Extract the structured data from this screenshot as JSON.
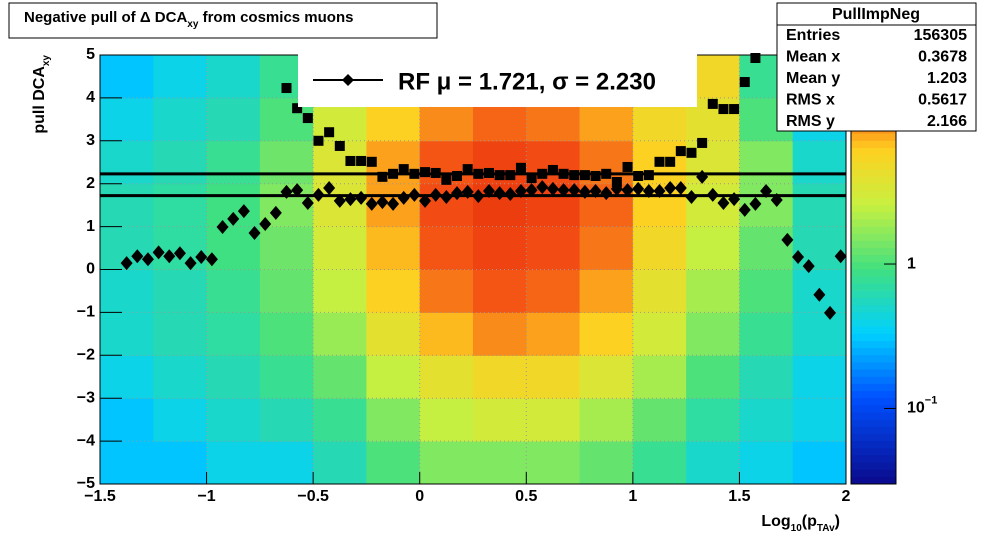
{
  "chart_data": {
    "type": "heatmap",
    "title": [
      "Negative pull of Δ DCA",
      "xy",
      " from cosmics muons"
    ],
    "xlabel": [
      "Log",
      "10",
      "(p",
      "TAv",
      ")"
    ],
    "ylabel": [
      "pull DCA",
      "xy"
    ],
    "xlim": [
      -1.5,
      2
    ],
    "ylim": [
      -5,
      5
    ],
    "xticks": [
      {
        "value": -1.5,
        "label": "−1.5"
      },
      {
        "value": -1,
        "label": "−1"
      },
      {
        "value": -0.5,
        "label": "−0.5"
      },
      0,
      0.5,
      1,
      1.5,
      2
    ],
    "yticks": [
      {
        "value": -5,
        "label": "−5"
      },
      {
        "value": -4,
        "label": "−4"
      },
      {
        "value": -3,
        "label": "−3"
      },
      {
        "value": -2,
        "label": "−2"
      },
      {
        "value": -1,
        "label": "−1"
      },
      0,
      1,
      2,
      3,
      4,
      5
    ],
    "grid": true,
    "log_z": true,
    "zlim": [
      0.03,
      28
    ],
    "zticks": [
      {
        "value": 0.1,
        "label": [
          "10",
          "−1"
        ]
      },
      1
    ],
    "heatmap": {
      "xbins": [
        -1.5,
        -1.25,
        -1,
        -0.75,
        -0.5,
        -0.25,
        0,
        0.25,
        0.5,
        0.75,
        1,
        1.25,
        1.5,
        1.75,
        2
      ],
      "ybins": [
        -5,
        -4,
        -3,
        -2,
        -1,
        0,
        1,
        2,
        3,
        4,
        5
      ],
      "z": [
        [
          0.3,
          0.3,
          0.4,
          0.4,
          0.6,
          1,
          1.5,
          1.5,
          1.5,
          1.2,
          0.8,
          0.5,
          0.4,
          0.3
        ],
        [
          0.3,
          0.4,
          0.5,
          0.6,
          0.8,
          1.5,
          2.5,
          3,
          3,
          2,
          1.2,
          0.7,
          0.5,
          0.4
        ],
        [
          0.4,
          0.5,
          0.6,
          0.8,
          1.2,
          2.5,
          4,
          5,
          5,
          3.5,
          2,
          1,
          0.6,
          0.4
        ],
        [
          0.5,
          0.6,
          0.7,
          1,
          1.8,
          4,
          7,
          9,
          8,
          6,
          3,
          1.5,
          0.8,
          0.5
        ],
        [
          0.5,
          0.6,
          0.8,
          1.2,
          2.5,
          6,
          10,
          12,
          11,
          8,
          4,
          2,
          1,
          0.5
        ],
        [
          0.6,
          0.7,
          0.9,
          1.3,
          3,
          7,
          12,
          14,
          13,
          10,
          5,
          2.5,
          1.2,
          0.6
        ],
        [
          0.6,
          0.7,
          0.9,
          1.5,
          3.5,
          8,
          13,
          15,
          14,
          11,
          6,
          3,
          1.5,
          0.6
        ],
        [
          0.5,
          0.6,
          0.8,
          1.3,
          3.5,
          8,
          12,
          14,
          13,
          10,
          6,
          3.5,
          1.5,
          0.5
        ],
        [
          0.4,
          0.5,
          0.6,
          1,
          3,
          6,
          9,
          11,
          10,
          8,
          5,
          4,
          1,
          0.4
        ],
        [
          0.3,
          0.4,
          0.5,
          0.8,
          4,
          5,
          7,
          8,
          8,
          6,
          4,
          5,
          0.8,
          0.3
        ]
      ]
    },
    "series": [
      {
        "marker": "diamond",
        "color": "#000000",
        "x": [
          -1.375,
          -1.325,
          -1.275,
          -1.225,
          -1.175,
          -1.125,
          -1.075,
          -1.025,
          -0.975,
          -0.925,
          -0.875,
          -0.825,
          -0.775,
          -0.725,
          -0.675,
          -0.625,
          -0.575,
          -0.525,
          -0.475,
          -0.425,
          -0.375,
          -0.325,
          -0.275,
          -0.225,
          -0.175,
          -0.125,
          -0.075,
          -0.025,
          0.025,
          0.075,
          0.125,
          0.175,
          0.225,
          0.275,
          0.325,
          0.375,
          0.425,
          0.475,
          0.525,
          0.575,
          0.625,
          0.675,
          0.725,
          0.775,
          0.825,
          0.875,
          0.925,
          0.975,
          1.025,
          1.075,
          1.125,
          1.175,
          1.225,
          1.275,
          1.325,
          1.375,
          1.425,
          1.475,
          1.525,
          1.575,
          1.625,
          1.675,
          1.725,
          1.775,
          1.825,
          1.875,
          1.925,
          1.975
        ],
        "values": [
          0.15,
          0.31,
          0.24,
          0.4,
          0.31,
          0.38,
          0.15,
          0.29,
          0.24,
          0.99,
          1.18,
          1.36,
          0.85,
          1.06,
          1.32,
          1.81,
          1.85,
          1.55,
          1.74,
          1.9,
          1.6,
          1.64,
          1.67,
          1.53,
          1.57,
          1.53,
          1.67,
          1.74,
          1.6,
          1.74,
          1.69,
          1.78,
          1.81,
          1.71,
          1.83,
          1.78,
          1.76,
          1.83,
          1.85,
          1.92,
          1.88,
          1.85,
          1.85,
          1.81,
          1.83,
          1.78,
          1.88,
          1.85,
          1.88,
          1.83,
          1.83,
          1.9,
          1.9,
          1.69,
          2.16,
          1.74,
          1.55,
          1.64,
          1.39,
          1.53,
          1.83,
          1.62,
          0.69,
          0.29,
          0.08,
          -0.59,
          -1.01,
          0.31
        ]
      },
      {
        "marker": "square",
        "color": "#000000",
        "x": [
          -0.625,
          -0.575,
          -0.525,
          -0.475,
          -0.425,
          -0.375,
          -0.325,
          -0.275,
          -0.225,
          -0.175,
          -0.125,
          -0.075,
          -0.025,
          0.025,
          0.075,
          0.125,
          0.175,
          0.225,
          0.275,
          0.325,
          0.375,
          0.425,
          0.475,
          0.525,
          0.575,
          0.625,
          0.675,
          0.725,
          0.775,
          0.825,
          0.875,
          0.925,
          0.975,
          1.025,
          1.075,
          1.125,
          1.175,
          1.225,
          1.275,
          1.325,
          1.375,
          1.425,
          1.475,
          1.525,
          1.575
        ],
        "values": [
          4.23,
          3.76,
          3.53,
          3.0,
          3.2,
          2.88,
          2.53,
          2.53,
          2.51,
          2.16,
          2.23,
          2.34,
          2.23,
          2.27,
          2.25,
          2.09,
          2.18,
          2.34,
          2.23,
          2.25,
          2.2,
          2.2,
          2.37,
          2.13,
          2.23,
          2.32,
          2.23,
          2.2,
          2.2,
          2.18,
          2.23,
          2.04,
          2.39,
          2.18,
          2.2,
          2.51,
          2.51,
          2.76,
          2.72,
          2.95,
          3.86,
          3.74,
          3.74,
          4.37,
          4.93
        ]
      }
    ],
    "lines": [
      {
        "y": 1.721,
        "color": "#000000"
      },
      {
        "y": 2.23,
        "color": "#000000"
      }
    ],
    "legend": {
      "label": "RF μ =  1.721, σ =   2.230"
    },
    "stats": {
      "title": "PullImpNeg",
      "rows": [
        [
          "Entries",
          "156305"
        ],
        [
          "Mean x",
          "0.3678"
        ],
        [
          "Mean y",
          "1.203"
        ],
        [
          "RMS x",
          "0.5617"
        ],
        [
          "RMS y",
          "2.166"
        ]
      ]
    }
  }
}
